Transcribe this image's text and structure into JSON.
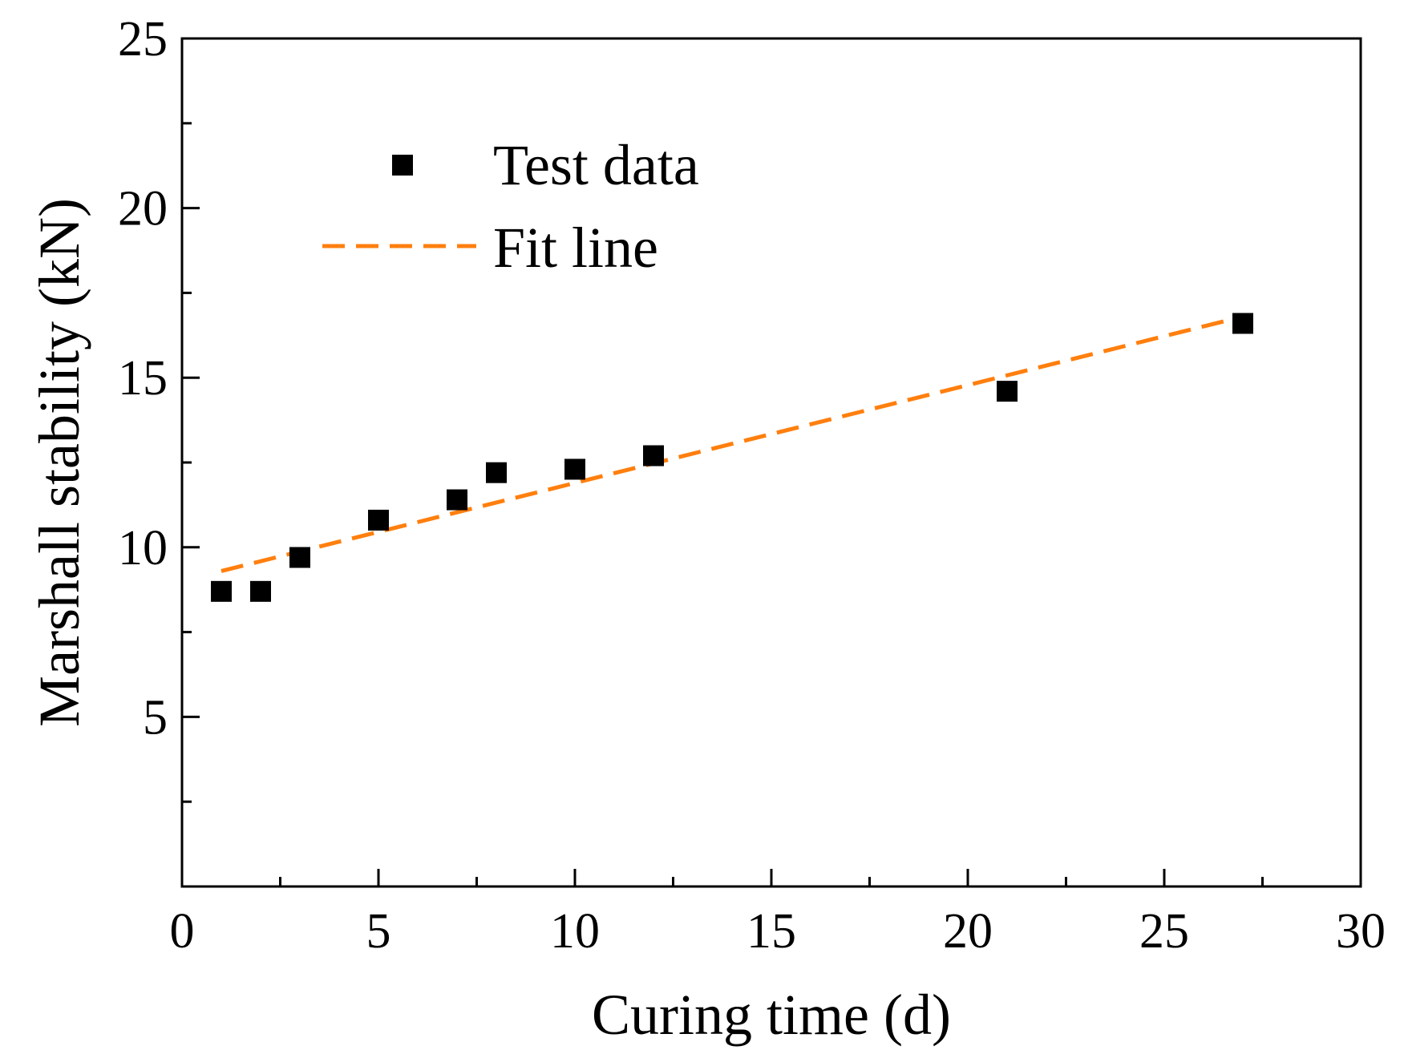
{
  "chart_data": {
    "type": "scatter",
    "xlabel": "Curing time (d)",
    "ylabel": "Marshall stability (kN)",
    "xlim": [
      0,
      30
    ],
    "ylim": [
      0,
      25
    ],
    "x_ticks": [
      0,
      5,
      10,
      15,
      20,
      25,
      30
    ],
    "y_ticks": [
      5,
      10,
      15,
      20,
      25
    ],
    "x_minor_step": 2.5,
    "y_minor_step": 2.5,
    "grid": false,
    "legend": {
      "position": "top-left",
      "entries": [
        "Test data",
        "Fit line"
      ]
    },
    "series": [
      {
        "name": "Test data",
        "kind": "scatter",
        "marker": "square",
        "color": "#000000",
        "x": [
          1,
          2,
          3,
          5,
          7,
          8,
          10,
          12,
          21,
          27
        ],
        "y": [
          8.7,
          8.7,
          9.7,
          10.8,
          11.4,
          12.2,
          12.3,
          12.7,
          14.6,
          16.6
        ]
      },
      {
        "name": "Fit line",
        "kind": "line",
        "style": "dashed",
        "color": "#FF7F0E",
        "x": [
          1,
          27
        ],
        "y": [
          9.3,
          16.8
        ]
      }
    ]
  }
}
